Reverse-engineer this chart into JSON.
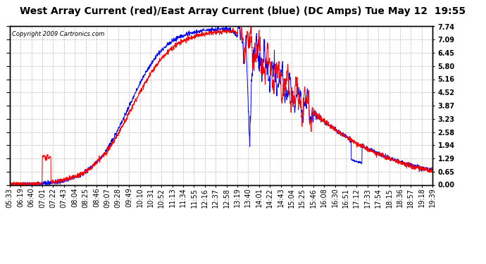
{
  "title": "West Array Current (red)/East Array Current (blue) (DC Amps) Tue May 12  19:55",
  "copyright": "Copyright 2009 Cartronics.com",
  "y_ticks": [
    0.0,
    0.65,
    1.29,
    1.94,
    2.58,
    3.23,
    3.87,
    4.52,
    5.16,
    5.8,
    6.45,
    7.09,
    7.74
  ],
  "x_labels": [
    "05:33",
    "06:19",
    "06:40",
    "07:01",
    "07:22",
    "07:43",
    "08:04",
    "08:25",
    "08:46",
    "09:07",
    "09:28",
    "09:49",
    "10:10",
    "10:31",
    "10:52",
    "11:13",
    "11:34",
    "11:55",
    "12:16",
    "12:37",
    "12:58",
    "13:19",
    "13:40",
    "14:01",
    "14:22",
    "14:43",
    "15:04",
    "15:25",
    "15:46",
    "16:08",
    "16:30",
    "16:51",
    "17:12",
    "17:33",
    "17:54",
    "18:15",
    "18:36",
    "18:57",
    "19:18",
    "19:39"
  ],
  "background_color": "#ffffff",
  "grid_color": "#bbbbbb",
  "grid_style": "--",
  "red_color": "#ff0000",
  "blue_color": "#0000ff",
  "title_fontsize": 10,
  "tick_fontsize": 7,
  "ylim": [
    0.0,
    7.74
  ],
  "xlim_min": 0,
  "xlim_max": 39
}
